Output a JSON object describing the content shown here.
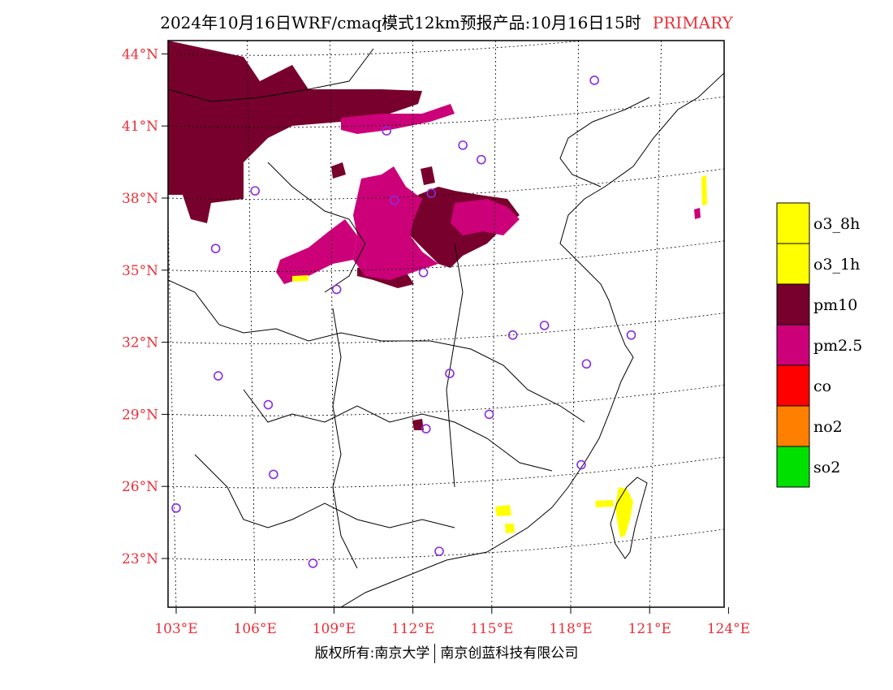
{
  "title": {
    "text": "2024年10月16日WRF/cmaq模式12km预报产品:10月16日15时",
    "tag": "PRIMARY",
    "tag_color": "#e8303a"
  },
  "footer": {
    "left": "版权所有:南京大学",
    "right": "南京创蓝科技有限公司"
  },
  "colors": {
    "axis_label": "#e8303a",
    "o3_8h": "#ffff00",
    "o3_1h": "#ffff00",
    "pm10": "#78002d",
    "pm2_5": "#cc0078",
    "co": "#ff0000",
    "no2": "#ff7f00",
    "so2": "#00e000",
    "station_marker": "#8a2be2"
  },
  "chart_data": {
    "type": "map",
    "x_axis": {
      "ticks": [
        {
          "value": 103,
          "label": "103°E"
        },
        {
          "value": 106,
          "label": "106°E"
        },
        {
          "value": 109,
          "label": "109°E"
        },
        {
          "value": 112,
          "label": "112°E"
        },
        {
          "value": 115,
          "label": "115°E"
        },
        {
          "value": 118,
          "label": "118°E"
        },
        {
          "value": 121,
          "label": "121°E"
        },
        {
          "value": 124,
          "label": "124°E"
        }
      ]
    },
    "y_axis": {
      "ticks": [
        {
          "value": 23,
          "label": "23°N"
        },
        {
          "value": 26,
          "label": "26°N"
        },
        {
          "value": 29,
          "label": "29°N"
        },
        {
          "value": 32,
          "label": "32°N"
        },
        {
          "value": 35,
          "label": "35°N"
        },
        {
          "value": 38,
          "label": "38°N"
        },
        {
          "value": 41,
          "label": "41°N"
        },
        {
          "value": 44,
          "label": "44°N"
        }
      ]
    },
    "legend": {
      "placement": "right",
      "items": [
        {
          "key": "o3_8h",
          "label": "o3_8h"
        },
        {
          "key": "o3_1h",
          "label": "o3_1h"
        },
        {
          "key": "pm10",
          "label": "pm10"
        },
        {
          "key": "pm2_5",
          "label": "pm2.5"
        },
        {
          "key": "co",
          "label": "co"
        },
        {
          "key": "no2",
          "label": "no2"
        },
        {
          "key": "so2",
          "label": "so2"
        }
      ]
    },
    "stations": [
      {
        "lon": 111.0,
        "lat": 40.8
      },
      {
        "lon": 113.9,
        "lat": 40.2
      },
      {
        "lon": 114.6,
        "lat": 39.6
      },
      {
        "lon": 118.9,
        "lat": 42.9
      },
      {
        "lon": 106.0,
        "lat": 38.3
      },
      {
        "lon": 111.3,
        "lat": 37.9
      },
      {
        "lon": 112.7,
        "lat": 38.2
      },
      {
        "lon": 104.5,
        "lat": 35.9
      },
      {
        "lon": 112.4,
        "lat": 34.9
      },
      {
        "lon": 109.1,
        "lat": 34.2
      },
      {
        "lon": 115.8,
        "lat": 32.3
      },
      {
        "lon": 117.0,
        "lat": 32.7
      },
      {
        "lon": 120.3,
        "lat": 32.3
      },
      {
        "lon": 118.6,
        "lat": 31.1
      },
      {
        "lon": 113.4,
        "lat": 30.7
      },
      {
        "lon": 104.6,
        "lat": 30.6
      },
      {
        "lon": 106.5,
        "lat": 29.4
      },
      {
        "lon": 112.5,
        "lat": 28.4
      },
      {
        "lon": 114.9,
        "lat": 29.0
      },
      {
        "lon": 106.7,
        "lat": 26.5
      },
      {
        "lon": 118.4,
        "lat": 26.9
      },
      {
        "lon": 103.0,
        "lat": 25.1
      },
      {
        "lon": 108.2,
        "lat": 22.8
      },
      {
        "lon": 113.0,
        "lat": 23.3
      }
    ]
  }
}
